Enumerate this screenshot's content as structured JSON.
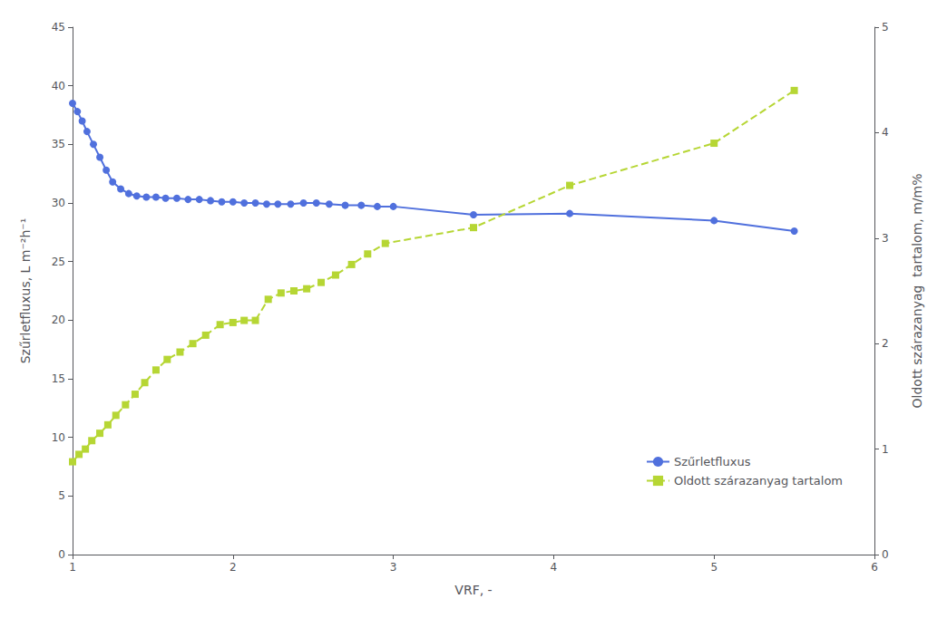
{
  "chart_data": {
    "type": "line",
    "xlabel": "VRF, -",
    "ylabel": "Szűrletfluxus, L m⁻²h⁻¹",
    "y2label": "Oldott szárazanyag  tartalom, m/m%",
    "xlim": [
      1,
      6
    ],
    "xticks": [
      1,
      2,
      3,
      4,
      5,
      6
    ],
    "ylim": [
      0,
      45
    ],
    "yticks": [
      0,
      5,
      10,
      15,
      20,
      25,
      30,
      35,
      40,
      45
    ],
    "y2lim": [
      0,
      5
    ],
    "y2ticks": [
      0,
      1,
      2,
      3,
      4,
      5
    ],
    "grid": false,
    "legend": "lower right",
    "series": [
      {
        "name": "Szűrletfluxus",
        "marker": "circle",
        "line_style": "solid",
        "x": [
          1.0,
          1.03,
          1.06,
          1.09,
          1.13,
          1.17,
          1.21,
          1.25,
          1.3,
          1.35,
          1.4,
          1.46,
          1.52,
          1.58,
          1.65,
          1.72,
          1.79,
          1.86,
          1.93,
          2.0,
          2.07,
          2.14,
          2.21,
          2.28,
          2.36,
          2.44,
          2.52,
          2.6,
          2.7,
          2.8,
          2.9,
          3.0,
          3.5,
          4.1,
          5.0,
          5.5
        ],
        "values": [
          38.5,
          37.8,
          37.0,
          36.1,
          35.0,
          33.9,
          32.8,
          31.8,
          31.2,
          30.8,
          30.6,
          30.5,
          30.5,
          30.4,
          30.4,
          30.3,
          30.3,
          30.2,
          30.1,
          30.1,
          30.0,
          30.0,
          29.9,
          29.9,
          29.9,
          30.0,
          30.0,
          29.9,
          29.8,
          29.8,
          29.7,
          29.7,
          29.0,
          29.1,
          28.5,
          27.6
        ]
      },
      {
        "name": "Oldott szárazanyag tartalom",
        "axis": "y2",
        "marker": "square",
        "line_style": "dashed",
        "x": [
          1.0,
          1.04,
          1.08,
          1.12,
          1.17,
          1.22,
          1.27,
          1.33,
          1.39,
          1.45,
          1.52,
          1.59,
          1.67,
          1.75,
          1.83,
          1.92,
          2.0,
          2.07,
          2.14,
          2.22,
          2.3,
          2.38,
          2.46,
          2.55,
          2.64,
          2.74,
          2.84,
          2.95,
          3.5,
          4.1,
          5.0,
          5.5
        ],
        "values": [
          0.88,
          0.95,
          1.0,
          1.08,
          1.15,
          1.23,
          1.32,
          1.42,
          1.52,
          1.63,
          1.75,
          1.85,
          1.92,
          2.0,
          2.08,
          2.18,
          2.2,
          2.22,
          2.22,
          2.42,
          2.48,
          2.5,
          2.52,
          2.58,
          2.65,
          2.75,
          2.85,
          2.95,
          3.1,
          3.5,
          3.9,
          4.4
        ]
      }
    ]
  }
}
